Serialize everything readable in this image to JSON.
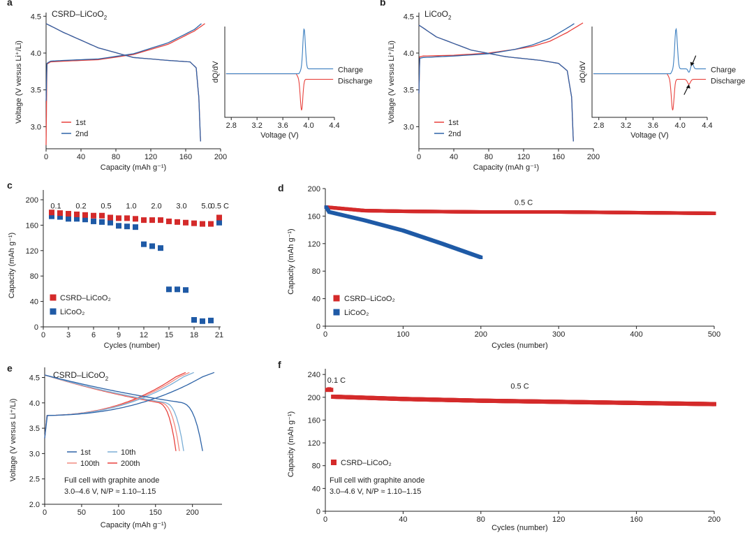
{
  "colors": {
    "red": "#e8413c",
    "blue": "#2d63a7",
    "red_marker": "#d42a2a",
    "blue_marker": "#1f5aa6",
    "axis": "#222222"
  },
  "panels": {
    "a": {
      "letter": "a",
      "title": "CSRD–LiCoO",
      "title_sub": "2",
      "ylabel": "Voltage (V versus Li⁺/Li)",
      "xlabel": "Capacity (mAh g⁻¹)",
      "legend": [
        "1st",
        "2nd"
      ],
      "xticks": [
        "0",
        "40",
        "80",
        "120",
        "160",
        "200"
      ],
      "yticks": [
        "3.0",
        "3.5",
        "4.0",
        "4.5"
      ],
      "inset": {
        "ylabel": "dQ/dV",
        "xlabel": "Voltage (V)",
        "xticks": [
          "2.8",
          "3.2",
          "3.6",
          "4.0",
          "4.4"
        ],
        "charge": "Charge",
        "discharge": "Discharge"
      }
    },
    "b": {
      "letter": "b",
      "title": "LiCoO",
      "title_sub": "2",
      "ylabel": "Voltage (V versus Li⁺/Li)",
      "xlabel": "Capacity (mAh g⁻¹)",
      "legend": [
        "1st",
        "2nd"
      ],
      "xticks": [
        "0",
        "40",
        "80",
        "120",
        "160",
        "200"
      ],
      "yticks": [
        "3.0",
        "3.5",
        "4.0",
        "4.5"
      ],
      "inset": {
        "ylabel": "dQ/dV",
        "xlabel": "Voltage (V)",
        "xticks": [
          "2.8",
          "3.2",
          "3.6",
          "4.0",
          "4.4"
        ],
        "charge": "Charge",
        "discharge": "Discharge"
      }
    },
    "c": {
      "letter": "c",
      "ylabel": "Capacity (mAh g⁻¹)",
      "xlabel": "Cycles (number)",
      "xticks": [
        "0",
        "3",
        "6",
        "9",
        "12",
        "15",
        "18",
        "21"
      ],
      "yticks": [
        "0",
        "40",
        "80",
        "120",
        "160",
        "200"
      ],
      "legend": [
        "CSRD–LiCoO₂",
        "LiCoO₂"
      ],
      "rates": [
        "0.1",
        "0.2",
        "0.5",
        "1.0",
        "2.0",
        "3.0",
        "5.0",
        "0.5 C"
      ]
    },
    "d": {
      "letter": "d",
      "ylabel": "Capacity (mAh g⁻¹)",
      "xlabel": "Cycles (number)",
      "xticks": [
        "0",
        "100",
        "200",
        "300",
        "400",
        "500"
      ],
      "yticks": [
        "0",
        "40",
        "80",
        "120",
        "160",
        "200"
      ],
      "legend": [
        "CSRD–LiCoO₂",
        "LiCoO₂"
      ],
      "rate": "0.5 C"
    },
    "e": {
      "letter": "e",
      "title": "CSRD–LiCoO",
      "title_sub": "2",
      "ylabel": "Voltage (V versus Li⁺/Li)",
      "xlabel": "Capacity (mAh g⁻¹)",
      "xticks": [
        "0",
        "50",
        "100",
        "150",
        "200"
      ],
      "yticks": [
        "2.0",
        "2.5",
        "3.0",
        "3.5",
        "4.0",
        "4.5"
      ],
      "legend": [
        "1st",
        "10th",
        "100th",
        "200th"
      ],
      "note1": "Full cell with graphite anode",
      "note2": "3.0–4.6 V, N/P ≈ 1.10–1.15"
    },
    "f": {
      "letter": "f",
      "ylabel": "Capacity (mAh g⁻¹)",
      "xlabel": "Cycles (number)",
      "xticks": [
        "0",
        "40",
        "80",
        "120",
        "160",
        "200"
      ],
      "yticks": [
        "0",
        "40",
        "80",
        "120",
        "160",
        "200",
        "240"
      ],
      "legend": [
        "CSRD–LiCoO₂"
      ],
      "rate1": "0.1 C",
      "rate2": "0.5 C",
      "note1": "Full cell with graphite anode",
      "note2": "3.0–4.6 V, N/P ≈ 1.10–1.15"
    }
  },
  "chart_data": [
    {
      "panel": "a",
      "type": "line",
      "xlim": [
        0,
        200
      ],
      "ylim": [
        2.7,
        4.55
      ],
      "series": [
        {
          "name": "1st charge",
          "x": [
            0,
            1,
            5,
            20,
            60,
            100,
            140,
            170,
            182
          ],
          "y": [
            2.75,
            3.85,
            3.88,
            3.89,
            3.91,
            3.98,
            4.12,
            4.3,
            4.4
          ]
        },
        {
          "name": "2nd charge",
          "x": [
            0,
            1,
            5,
            20,
            60,
            100,
            140,
            170,
            178
          ],
          "y": [
            3.35,
            3.86,
            3.89,
            3.9,
            3.92,
            3.99,
            4.14,
            4.32,
            4.4
          ]
        },
        {
          "name": "1st discharge",
          "x": [
            0,
            20,
            60,
            100,
            140,
            165,
            172,
            175,
            177
          ],
          "y": [
            4.4,
            4.28,
            4.07,
            3.94,
            3.9,
            3.88,
            3.8,
            3.4,
            2.8
          ]
        },
        {
          "name": "2nd discharge",
          "x": [
            0,
            20,
            60,
            100,
            140,
            165,
            172,
            175,
            177
          ],
          "y": [
            4.4,
            4.28,
            4.07,
            3.94,
            3.9,
            3.88,
            3.8,
            3.4,
            2.8
          ]
        }
      ]
    },
    {
      "panel": "b",
      "type": "line",
      "xlim": [
        0,
        200
      ],
      "ylim": [
        2.7,
        4.55
      ],
      "series": [
        {
          "name": "1st charge",
          "x": [
            0,
            1,
            5,
            40,
            80,
            110,
            130,
            150,
            170,
            188
          ],
          "y": [
            3.45,
            3.95,
            3.96,
            3.97,
            4.0,
            4.05,
            4.09,
            4.16,
            4.28,
            4.41
          ]
        },
        {
          "name": "2nd charge",
          "x": [
            0,
            1,
            5,
            40,
            80,
            110,
            130,
            150,
            170,
            178
          ],
          "y": [
            3.45,
            3.93,
            3.94,
            3.96,
            3.99,
            4.05,
            4.11,
            4.2,
            4.34,
            4.4
          ]
        },
        {
          "name": "1st discharge",
          "x": [
            0,
            20,
            60,
            100,
            140,
            160,
            170,
            175,
            177
          ],
          "y": [
            4.38,
            4.22,
            4.04,
            3.95,
            3.9,
            3.86,
            3.76,
            3.4,
            2.8
          ]
        },
        {
          "name": "2nd discharge",
          "x": [
            0,
            20,
            60,
            100,
            140,
            160,
            170,
            175,
            177
          ],
          "y": [
            4.38,
            4.22,
            4.04,
            3.95,
            3.9,
            3.86,
            3.76,
            3.4,
            2.8
          ]
        }
      ]
    },
    {
      "panel": "a-inset",
      "type": "line",
      "xlim": [
        2.7,
        4.4
      ],
      "series": [
        {
          "name": "Charge",
          "peak_voltage": 3.93
        },
        {
          "name": "Discharge",
          "peak_voltage": 3.89
        }
      ]
    },
    {
      "panel": "b-inset",
      "type": "line",
      "xlim": [
        2.7,
        4.4
      ],
      "series": [
        {
          "name": "Charge",
          "peak_voltage": 3.94,
          "extra_peak_voltage": 4.18
        },
        {
          "name": "Discharge",
          "peak_voltage": 3.89,
          "extra_peak_voltage": 4.13
        }
      ]
    },
    {
      "panel": "c",
      "type": "scatter",
      "xlim": [
        0,
        21
      ],
      "ylim": [
        0,
        200
      ],
      "series": [
        {
          "name": "CSRD–LiCoO₂",
          "x": [
            1,
            2,
            3,
            4,
            5,
            6,
            7,
            8,
            9,
            10,
            11,
            12,
            13,
            14,
            15,
            16,
            17,
            18,
            19,
            20,
            21
          ],
          "y": [
            180,
            179,
            178,
            177,
            176,
            175,
            175,
            172,
            171,
            171,
            170,
            168,
            168,
            168,
            166,
            165,
            164,
            163,
            162,
            162,
            172
          ]
        },
        {
          "name": "LiCoO₂",
          "x": [
            1,
            2,
            3,
            4,
            5,
            6,
            7,
            8,
            9,
            10,
            11,
            12,
            13,
            14,
            15,
            16,
            17,
            18,
            19,
            20,
            21
          ],
          "y": [
            174,
            173,
            170,
            170,
            169,
            166,
            165,
            164,
            159,
            158,
            157,
            130,
            127,
            124,
            59,
            59,
            58,
            11,
            9,
            10,
            164
          ]
        }
      ]
    },
    {
      "panel": "d",
      "type": "scatter",
      "xlim": [
        0,
        500
      ],
      "ylim": [
        0,
        200
      ],
      "series": [
        {
          "name": "CSRD–LiCoO₂",
          "x": [
            1,
            50,
            100,
            200,
            300,
            400,
            500
          ],
          "y": [
            173,
            168,
            167,
            166,
            166,
            165,
            164
          ]
        },
        {
          "name": "LiCoO₂",
          "x": [
            1,
            5,
            50,
            100,
            150,
            200
          ],
          "y": [
            173,
            166,
            154,
            139,
            120,
            100
          ]
        }
      ]
    },
    {
      "panel": "e",
      "type": "line",
      "xlim": [
        0,
        240
      ],
      "ylim": [
        2.0,
        4.7
      ],
      "series": [
        {
          "name": "1st",
          "color": "#2d63a7",
          "max_capacity": 225
        },
        {
          "name": "10th",
          "color": "#7aaed6",
          "max_capacity": 198
        },
        {
          "name": "100th",
          "color": "#f08a80",
          "max_capacity": 192
        },
        {
          "name": "200th",
          "color": "#e8413c",
          "max_capacity": 187
        }
      ]
    },
    {
      "panel": "f",
      "type": "scatter",
      "xlim": [
        0,
        200
      ],
      "ylim": [
        0,
        250
      ],
      "series": [
        {
          "name": "CSRD–LiCoO₂",
          "x": [
            1,
            2,
            3,
            4,
            40,
            80,
            120,
            160,
            200
          ],
          "y": [
            213,
            214,
            213,
            201,
            197,
            194,
            192,
            190,
            188
          ]
        }
      ]
    }
  ]
}
